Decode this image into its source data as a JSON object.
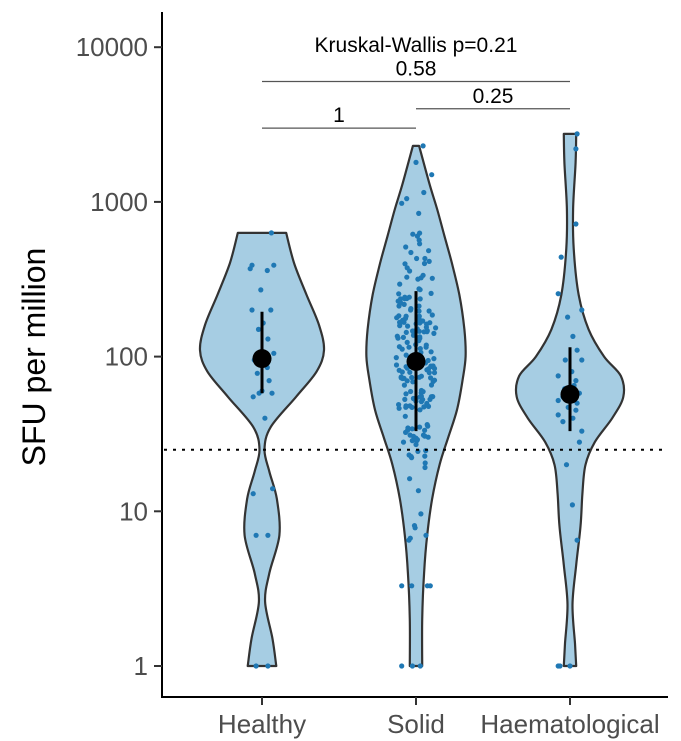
{
  "chart_data": {
    "type": "violin",
    "ylabel": "SFU per million",
    "xlabel": "",
    "y_scale": "log10",
    "ylim": [
      1,
      15000
    ],
    "y_ticks": [
      1,
      10,
      100,
      1000,
      10000
    ],
    "y_tick_labels": [
      "1",
      "10",
      "100",
      "1000",
      "10000"
    ],
    "categories": [
      "Healthy",
      "Solid",
      "Haematological"
    ],
    "threshold": 25,
    "fill_color": "#a6cde3",
    "point_color": "#1f78b4",
    "outline_color": "#333333",
    "groups": [
      {
        "label": "Healthy",
        "max": 630,
        "min": 1,
        "median": 97,
        "q1": 58,
        "q3": 195,
        "violin_width_profile": [
          [
            1,
            0.23
          ],
          [
            1.5,
            0.17
          ],
          [
            2.6,
            0.05
          ],
          [
            4,
            0.12
          ],
          [
            7,
            0.28
          ],
          [
            12,
            0.24
          ],
          [
            18,
            0.12
          ],
          [
            25,
            0.04
          ],
          [
            35,
            0.14
          ],
          [
            55,
            0.55
          ],
          [
            80,
            0.88
          ],
          [
            110,
            1.0
          ],
          [
            160,
            0.92
          ],
          [
            250,
            0.72
          ],
          [
            400,
            0.52
          ],
          [
            630,
            0.39
          ]
        ],
        "points": [
          [
            -0.1,
            1.0
          ],
          [
            0.1,
            1.0
          ],
          [
            -0.15,
            13
          ],
          [
            0.18,
            14
          ],
          [
            -0.1,
            7
          ],
          [
            0.1,
            7
          ],
          [
            0.05,
            40
          ],
          [
            -0.15,
            55
          ],
          [
            0.17,
            58
          ],
          [
            -0.05,
            58
          ],
          [
            0.0,
            60
          ],
          [
            0.12,
            70
          ],
          [
            -0.08,
            78
          ],
          [
            0.09,
            85
          ],
          [
            -0.13,
            95
          ],
          [
            0.2,
            105
          ],
          [
            0.1,
            130
          ],
          [
            -0.06,
            150
          ],
          [
            0.02,
            165
          ],
          [
            0.15,
            200
          ],
          [
            -0.17,
            200
          ],
          [
            -0.02,
            270
          ],
          [
            0.09,
            360
          ],
          [
            -0.2,
            370
          ],
          [
            -0.17,
            390
          ],
          [
            0.2,
            390
          ],
          [
            0.16,
            630
          ]
        ]
      },
      {
        "label": "Solid",
        "max": 2300,
        "min": 1,
        "median": 93,
        "q1": 33,
        "q3": 265,
        "violin_width_profile": [
          [
            1,
            0.1
          ],
          [
            2,
            0.1
          ],
          [
            4,
            0.13
          ],
          [
            7,
            0.18
          ],
          [
            12,
            0.26
          ],
          [
            20,
            0.38
          ],
          [
            30,
            0.52
          ],
          [
            45,
            0.66
          ],
          [
            70,
            0.75
          ],
          [
            100,
            0.8
          ],
          [
            150,
            0.78
          ],
          [
            250,
            0.7
          ],
          [
            400,
            0.58
          ],
          [
            600,
            0.46
          ],
          [
            900,
            0.34
          ],
          [
            1300,
            0.22
          ],
          [
            2300,
            0.05
          ]
        ]
      },
      {
        "label": "Haematological",
        "max": 2750,
        "min": 1,
        "median": 57,
        "q1": 33,
        "q3": 115,
        "violin_width_profile": [
          [
            1,
            0.1
          ],
          [
            1.4,
            0.08
          ],
          [
            2.5,
            0.04
          ],
          [
            4.5,
            0.1
          ],
          [
            8,
            0.17
          ],
          [
            13,
            0.2
          ],
          [
            20,
            0.25
          ],
          [
            28,
            0.4
          ],
          [
            40,
            0.68
          ],
          [
            55,
            0.86
          ],
          [
            75,
            0.82
          ],
          [
            100,
            0.55
          ],
          [
            150,
            0.3
          ],
          [
            250,
            0.14
          ],
          [
            500,
            0.06
          ],
          [
            900,
            0.05
          ],
          [
            1800,
            0.09
          ],
          [
            2750,
            0.1
          ]
        ],
        "points": [
          [
            -0.2,
            1.0
          ],
          [
            -0.17,
            1.0
          ],
          [
            0.0,
            1.0
          ],
          [
            0.12,
            6.5
          ],
          [
            0.04,
            11
          ],
          [
            -0.06,
            20
          ],
          [
            0.16,
            28
          ],
          [
            0.2,
            33
          ],
          [
            -0.12,
            38
          ],
          [
            0.05,
            40
          ],
          [
            -0.2,
            42
          ],
          [
            0.1,
            45
          ],
          [
            -0.03,
            47
          ],
          [
            0.12,
            50
          ],
          [
            -0.2,
            52
          ],
          [
            -0.12,
            55
          ],
          [
            0.02,
            56
          ],
          [
            0.16,
            58
          ],
          [
            -0.09,
            62
          ],
          [
            0.07,
            65
          ],
          [
            0.1,
            70
          ],
          [
            -0.2,
            75
          ],
          [
            0.03,
            80
          ],
          [
            0.2,
            95
          ],
          [
            -0.08,
            95
          ],
          [
            0.12,
            110
          ],
          [
            0.05,
            135
          ],
          [
            -0.04,
            180
          ],
          [
            0.2,
            200
          ],
          [
            -0.2,
            255
          ],
          [
            -0.15,
            440
          ],
          [
            0.1,
            720
          ],
          [
            0.1,
            2200
          ],
          [
            0.12,
            2750
          ]
        ]
      }
    ],
    "comparisons": [
      {
        "from": "Healthy",
        "to": "Solid",
        "label": "1",
        "y_value": 3000
      },
      {
        "from": "Solid",
        "to": "Haematological",
        "label": "0.25",
        "y_value": 4000
      },
      {
        "from": "Healthy",
        "to": "Haematological",
        "label": "0.58",
        "y_value": 6000
      }
    ],
    "annotation": "Kruskal-Wallis p=0.21",
    "grid": false,
    "legend": "none"
  }
}
